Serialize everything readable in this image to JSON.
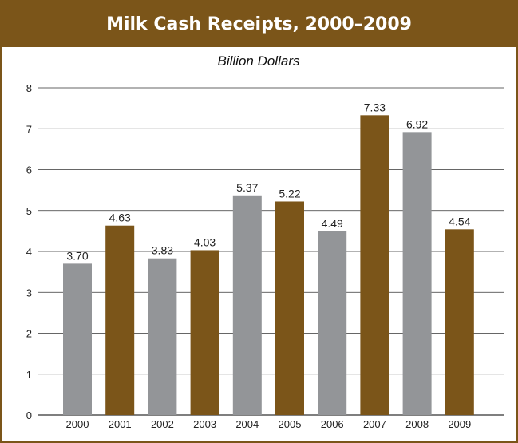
{
  "header": {
    "title": "Milk Cash Receipts, 2000–2009"
  },
  "colors": {
    "brand_brown": "#7b5519",
    "bar_gray": "#939598",
    "gridline": "#333333"
  },
  "chart_data": {
    "type": "bar",
    "title": "Milk Cash Receipts, 2000–2009",
    "subtitle": "Billion Dollars",
    "xlabel": "",
    "ylabel": "",
    "ylim": [
      0,
      8
    ],
    "yticks": [
      "0",
      "1",
      "2",
      "3",
      "4",
      "5",
      "6",
      "7",
      "8"
    ],
    "grid": true,
    "categories": [
      "2000",
      "2001",
      "2002",
      "2003",
      "2004",
      "2005",
      "2006",
      "2007",
      "2008",
      "2009"
    ],
    "values": [
      3.7,
      4.63,
      3.83,
      4.03,
      5.37,
      5.22,
      4.49,
      7.33,
      6.92,
      4.54
    ],
    "value_labels": [
      "3.70",
      "4.63",
      "3.83",
      "4.03",
      "5.37",
      "5.22",
      "4.49",
      "7.33",
      "6.92",
      "4.54"
    ],
    "bar_colors": [
      "#939598",
      "#7b5519",
      "#939598",
      "#7b5519",
      "#939598",
      "#7b5519",
      "#939598",
      "#7b5519",
      "#939598",
      "#7b5519"
    ]
  }
}
